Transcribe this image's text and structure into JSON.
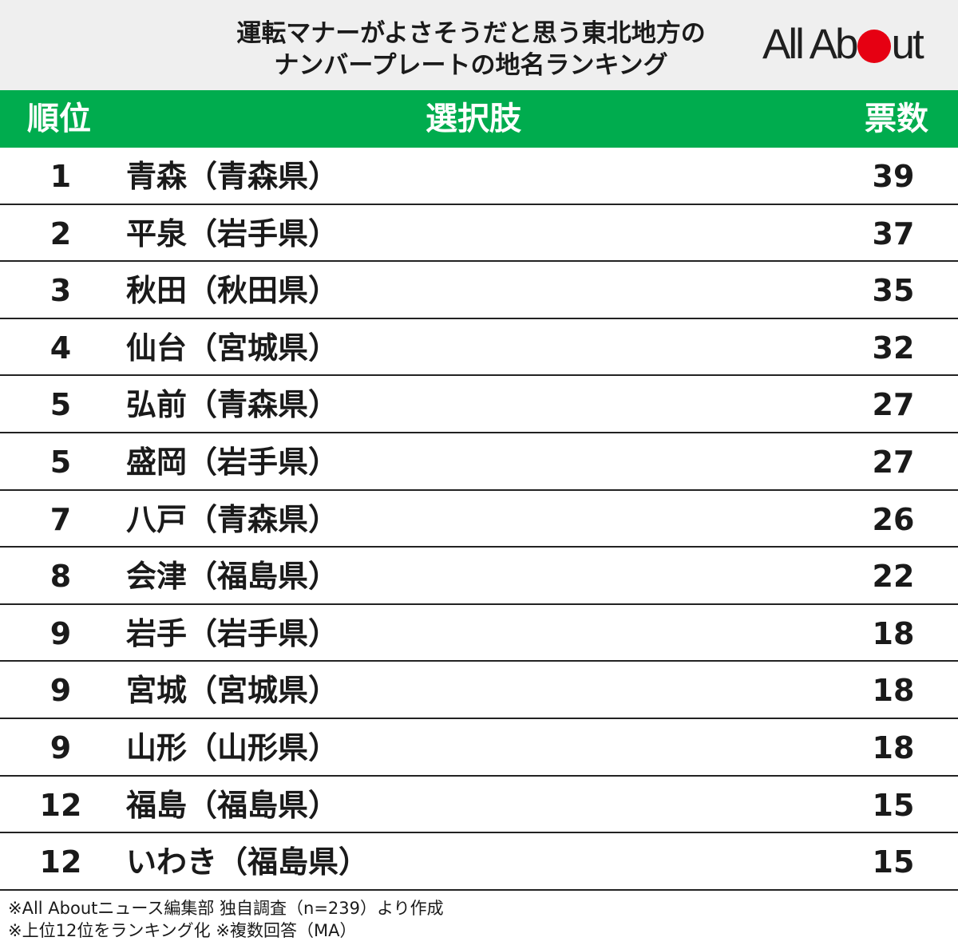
{
  "title": {
    "line1": "運転マナーがよさそうだと思う東北地方の",
    "line2": "ナンバープレートの地名ランキング"
  },
  "logo": {
    "text_left": "All Ab",
    "text_right": "ut",
    "dot_color": "#e60012"
  },
  "table": {
    "header_color": "#00ac4e",
    "columns": {
      "rank": "順位",
      "choice": "選択肢",
      "votes": "票数"
    },
    "rows": [
      {
        "rank": "1",
        "choice": "青森（青森県）",
        "votes": "39"
      },
      {
        "rank": "2",
        "choice": "平泉（岩手県）",
        "votes": "37"
      },
      {
        "rank": "3",
        "choice": "秋田（秋田県）",
        "votes": "35"
      },
      {
        "rank": "4",
        "choice": "仙台（宮城県）",
        "votes": "32"
      },
      {
        "rank": "5",
        "choice": "弘前（青森県）",
        "votes": "27"
      },
      {
        "rank": "5",
        "choice": "盛岡（岩手県）",
        "votes": "27"
      },
      {
        "rank": "7",
        "choice": "八戸（青森県）",
        "votes": "26"
      },
      {
        "rank": "8",
        "choice": "会津（福島県）",
        "votes": "22"
      },
      {
        "rank": "9",
        "choice": "岩手（岩手県）",
        "votes": "18"
      },
      {
        "rank": "9",
        "choice": "宮城（宮城県）",
        "votes": "18"
      },
      {
        "rank": "9",
        "choice": "山形（山形県）",
        "votes": "18"
      },
      {
        "rank": "12",
        "choice": "福島（福島県）",
        "votes": "15"
      },
      {
        "rank": "12",
        "choice": "いわき（福島県）",
        "votes": "15"
      }
    ]
  },
  "footnotes": {
    "line1": "※All Aboutニュース編集部 独自調査（n=239）より作成",
    "line2": "※上位12位をランキング化 ※複数回答（MA）"
  }
}
